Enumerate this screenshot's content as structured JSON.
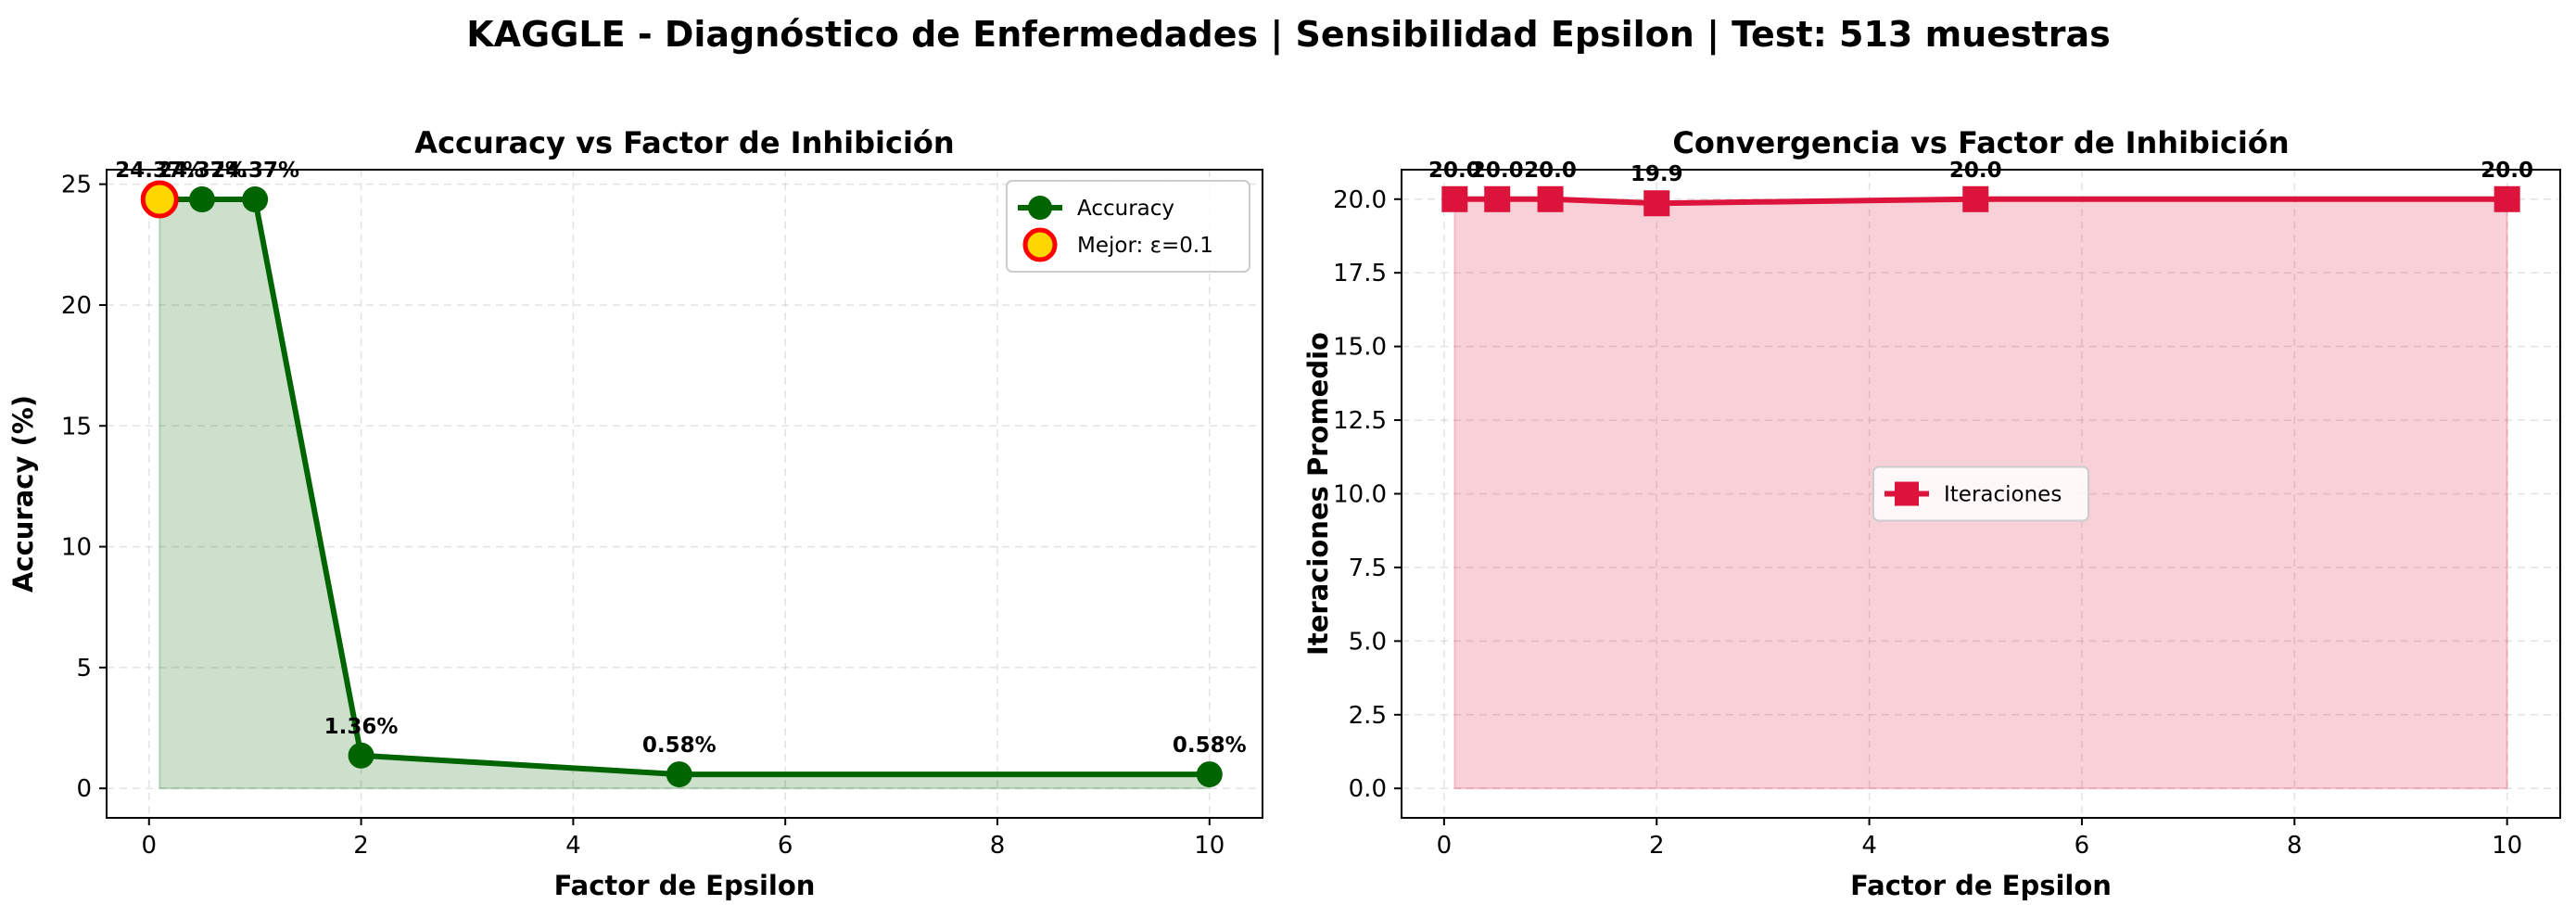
{
  "figure": {
    "title": "KAGGLE - Diagnóstico de Enfermedades | Sensibilidad Epsilon | Test: 513 muestras"
  },
  "chart_data": [
    {
      "type": "line",
      "title": "Accuracy vs Factor de Inhibición",
      "xlabel": "Factor de Epsilon",
      "ylabel": "Accuracy (%)",
      "x": [
        0.1,
        0.5,
        1,
        2,
        5,
        10
      ],
      "series": [
        {
          "name": "Accuracy",
          "values": [
            24.37,
            24.37,
            24.37,
            1.36,
            0.58,
            0.58
          ],
          "color": "#006400",
          "marker": "circle"
        }
      ],
      "data_labels": [
        "24.37%",
        "24.37%",
        "24.37%",
        "1.36%",
        "0.58%",
        "0.58%"
      ],
      "highlight": {
        "name": "Mejor: ε=0.1",
        "x": 0.1,
        "y": 24.37,
        "fill": "#FFD700",
        "edge": "#FF0000"
      },
      "xlim": [
        -0.4,
        10.5
      ],
      "ylim": [
        -1.22,
        25.6
      ],
      "xticks": [
        0,
        2,
        4,
        6,
        8,
        10
      ],
      "yticks": [
        0,
        5,
        10,
        15,
        20,
        25
      ],
      "grid": true,
      "fill_under": true,
      "legend": "upper right"
    },
    {
      "type": "line",
      "title": "Convergencia vs Factor de Inhibición",
      "xlabel": "Factor de Epsilon",
      "ylabel": "Iteraciones Promedio",
      "x": [
        0.1,
        0.5,
        1,
        2,
        5,
        10
      ],
      "series": [
        {
          "name": "Iteraciones",
          "values": [
            20.0,
            20.0,
            20.0,
            19.86,
            20.0,
            20.0
          ],
          "color": "#DC143C",
          "marker": "square"
        }
      ],
      "data_labels": [
        "20.0",
        "20.0",
        "20.0",
        "19.9",
        "20.0",
        "20.0"
      ],
      "xlim": [
        -0.4,
        10.5
      ],
      "ylim": [
        -1.0,
        21.0
      ],
      "xticks": [
        0,
        2,
        4,
        6,
        8,
        10
      ],
      "yticks": [
        0.0,
        2.5,
        5.0,
        7.5,
        10.0,
        12.5,
        15.0,
        17.5,
        20.0
      ],
      "ytick_labels": [
        "0.0",
        "2.5",
        "5.0",
        "7.5",
        "10.0",
        "12.5",
        "15.0",
        "17.5",
        "20.0"
      ],
      "grid": true,
      "fill_under": true,
      "legend": "center"
    }
  ]
}
